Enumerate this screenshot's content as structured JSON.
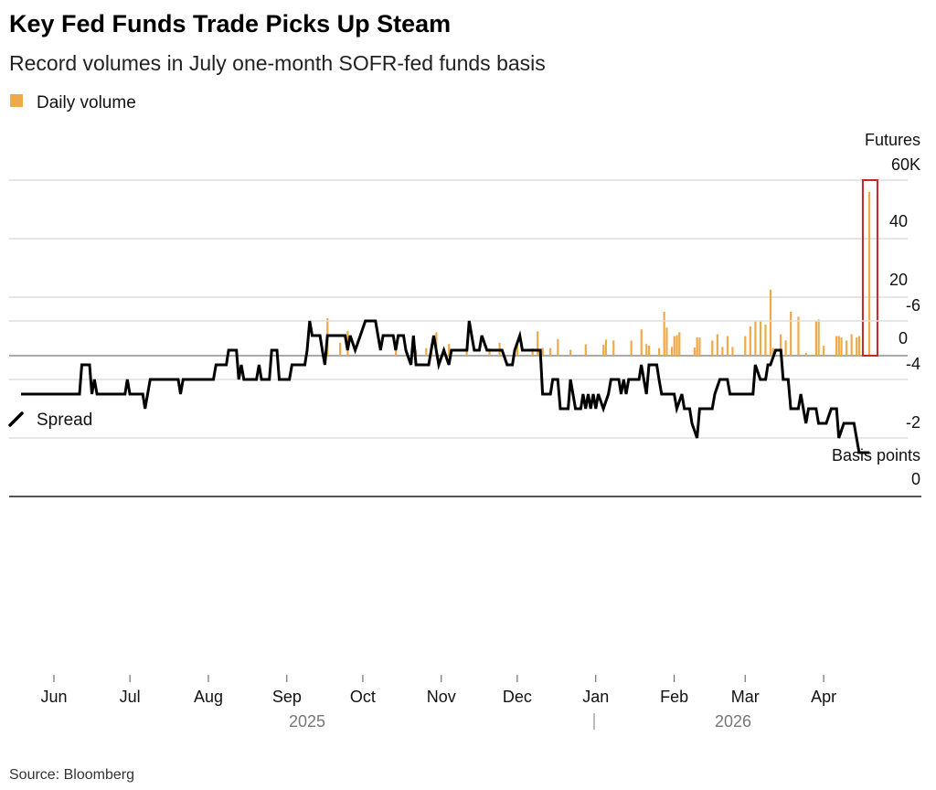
{
  "chart_data": [
    {
      "type": "bar",
      "title": "Key Fed Funds Trade Picks Up Steam",
      "subtitle": "Record volumes in July one-month SOFR-fed funds basis",
      "legend": "Daily volume",
      "ylabel": "Futures",
      "ylim": [
        0,
        60
      ],
      "yticks": [
        "60K",
        "40",
        "20",
        "0"
      ],
      "grid": true,
      "color": "#f0a94a",
      "highlight_color": "#c0282d",
      "highlight_date": "2026-04-19",
      "x": [
        "2025-09-17",
        "2025-09-22",
        "2025-09-25",
        "2025-10-14",
        "2025-10-22",
        "2025-10-26",
        "2025-10-28",
        "2025-10-30",
        "2025-11-04",
        "2025-11-11",
        "2025-11-20",
        "2025-11-24",
        "2025-12-01",
        "2025-12-07",
        "2025-12-09",
        "2025-12-11",
        "2025-12-14",
        "2025-12-17",
        "2025-12-22",
        "2025-12-28",
        "2026-01-04",
        "2026-01-05",
        "2026-01-08",
        "2026-01-15",
        "2026-01-19",
        "2026-01-21",
        "2026-01-22",
        "2026-01-26",
        "2026-01-28",
        "2026-01-29",
        "2026-01-31",
        "2026-02-01",
        "2026-02-02",
        "2026-02-03",
        "2026-02-09",
        "2026-02-10",
        "2026-02-11",
        "2026-02-16",
        "2026-02-18",
        "2026-02-20",
        "2026-02-22",
        "2026-02-24",
        "2026-03-01",
        "2026-03-03",
        "2026-03-05",
        "2026-03-07",
        "2026-03-09",
        "2026-03-11",
        "2026-03-12",
        "2026-03-15",
        "2026-03-17",
        "2026-03-19",
        "2026-03-22",
        "2026-03-25",
        "2026-03-29",
        "2026-03-30",
        "2026-04-01",
        "2026-04-06",
        "2026-04-07",
        "2026-04-08",
        "2026-04-10",
        "2026-04-12",
        "2026-04-14",
        "2026-04-15",
        "2026-04-19"
      ],
      "values": [
        12.8,
        4.4,
        8.5,
        2,
        2,
        2.6,
        4,
        8,
        4,
        1.5,
        2.5,
        4.4,
        4.4,
        2.5,
        8.3,
        2.7,
        2.6,
        5.7,
        2,
        3.9,
        3.7,
        5.5,
        5.2,
        5.2,
        9,
        4,
        3.4,
        2.6,
        15,
        9.6,
        3,
        6.7,
        7,
        8,
        2.8,
        6.2,
        6.2,
        5.2,
        7.3,
        3,
        6.7,
        3,
        6.7,
        10,
        11.7,
        11.7,
        10.6,
        22.6,
        2.6,
        7.3,
        5.2,
        15,
        13.3,
        1,
        11.7,
        12.4,
        3.4,
        6.7,
        6.7,
        6.2,
        5.2,
        7.3,
        6.2,
        6.7,
        56
      ]
    },
    {
      "type": "line",
      "legend": "Spread",
      "ylabel": "Basis points",
      "ylim": [
        -6,
        0
      ],
      "yticks": [
        "0",
        "-2",
        "-4",
        "-6"
      ],
      "grid": true,
      "color": "#000000",
      "xticks": [
        "Jun",
        "Jul",
        "Aug",
        "Sep",
        "Oct",
        "Nov",
        "Dec",
        "Jan",
        "Feb",
        "Mar",
        "Apr"
      ],
      "years": [
        "2025",
        "2026"
      ],
      "x": [
        "2025-05-19",
        "2025-06-09",
        "2025-06-12",
        "2025-06-16",
        "2025-06-17",
        "2025-06-18",
        "2025-06-27",
        "2025-06-30",
        "2025-07-01",
        "2025-07-07",
        "2025-07-09",
        "2025-07-16",
        "2025-07-21",
        "2025-07-22",
        "2025-08-03",
        "2025-08-04",
        "2025-08-09",
        "2025-08-13",
        "2025-08-14",
        "2025-08-15",
        "2025-08-20",
        "2025-08-21",
        "2025-08-22",
        "2025-08-26",
        "2025-08-29",
        "2025-09-02",
        "2025-09-03",
        "2025-09-05",
        "2025-09-09",
        "2025-09-10",
        "2025-09-11",
        "2025-09-15",
        "2025-09-16",
        "2025-09-17",
        "2025-09-24",
        "2025-09-25",
        "2025-09-26",
        "2025-09-28",
        "2025-09-30",
        "2025-10-02",
        "2025-10-06",
        "2025-10-08",
        "2025-10-09",
        "2025-10-13",
        "2025-10-14",
        "2025-10-15",
        "2025-10-18",
        "2025-10-20",
        "2025-10-21",
        "2025-10-22",
        "2025-10-27",
        "2025-10-29",
        "2025-10-31",
        "2025-11-02",
        "2025-11-04",
        "2025-11-05",
        "2025-11-09",
        "2025-11-12",
        "2025-11-14",
        "2025-11-16",
        "2025-11-17",
        "2025-11-19",
        "2025-11-25",
        "2025-11-27",
        "2025-11-30",
        "2025-12-02",
        "2025-12-03",
        "2025-12-07",
        "2025-12-11",
        "2025-12-15",
        "2025-12-17",
        "2025-12-18",
        "2025-12-22",
        "2025-12-24",
        "2025-12-27",
        "2025-12-28",
        "2025-12-29",
        "2025-12-30",
        "2025-12-31",
        "2026-01-01",
        "2026-01-02",
        "2026-01-04",
        "2026-01-06",
        "2026-01-07",
        "2026-01-11",
        "2026-01-12",
        "2026-01-13",
        "2026-01-14",
        "2026-01-19",
        "2026-01-21",
        "2026-01-22",
        "2026-01-26",
        "2026-01-27",
        "2026-02-01",
        "2026-02-02",
        "2026-02-04",
        "2026-02-05",
        "2026-02-08",
        "2026-02-10",
        "2026-02-11",
        "2026-02-16",
        "2026-02-17",
        "2026-02-19",
        "2026-02-22",
        "2026-02-23",
        "2026-03-02",
        "2026-03-05",
        "2026-03-07",
        "2026-03-10",
        "2026-03-11",
        "2026-03-13",
        "2026-03-16",
        "2026-03-18",
        "2026-03-19",
        "2026-03-22",
        "2026-03-23",
        "2026-03-25",
        "2026-03-26",
        "2026-03-29",
        "2026-03-30",
        "2026-04-02",
        "2026-04-04",
        "2026-04-07",
        "2026-04-09",
        "2026-04-13",
        "2026-04-14",
        "2026-04-15",
        "2026-04-19"
      ],
      "values": [
        -3.5,
        -3.5,
        -4.5,
        -3.5,
        -4,
        -3.5,
        -3.5,
        -4,
        -3.5,
        -3,
        -4,
        -4,
        -3.5,
        -4,
        -4,
        -4.5,
        -5,
        -4,
        -4.5,
        -4,
        -4,
        -4.5,
        -4,
        -5,
        -4,
        -4,
        -4.5,
        -4.5,
        -5,
        -6,
        -5.5,
        -5,
        -4.5,
        -5.5,
        -5.5,
        -5,
        -5.5,
        -5,
        -5.5,
        -6,
        -6,
        -5,
        -5.5,
        -5.5,
        -5,
        -5.5,
        -5,
        -4.5,
        -5.5,
        -4.5,
        -4.5,
        -5.5,
        -4.5,
        -5,
        -4.5,
        -5,
        -5,
        -6,
        -5,
        -5,
        -5.5,
        -5,
        -5,
        -4.5,
        -5,
        -5.5,
        -5,
        -5,
        -3.5,
        -4,
        -4,
        -3,
        -4,
        -3,
        -3.5,
        -3,
        -3.5,
        -3,
        -3.5,
        -3,
        -3.5,
        -3,
        -3.5,
        -4,
        -3.5,
        -4,
        -3.5,
        -4,
        -4.5,
        -3.5,
        -4.5,
        -4,
        -3.5,
        -3.5,
        -3,
        -3.5,
        -3,
        -2.5,
        -2,
        -3,
        -3,
        -3.5,
        -4,
        -4,
        -3.5,
        -3.5,
        -4.5,
        -4,
        -4.5,
        -4.5,
        -5,
        -4,
        -4,
        -3,
        -3,
        -3.5,
        -2.5,
        -3,
        -3,
        -2.5,
        -2.5,
        -3,
        -2,
        -2.5,
        -2.5,
        -2,
        -1.5,
        -1.5
      ]
    }
  ],
  "source": "Source: Bloomberg"
}
